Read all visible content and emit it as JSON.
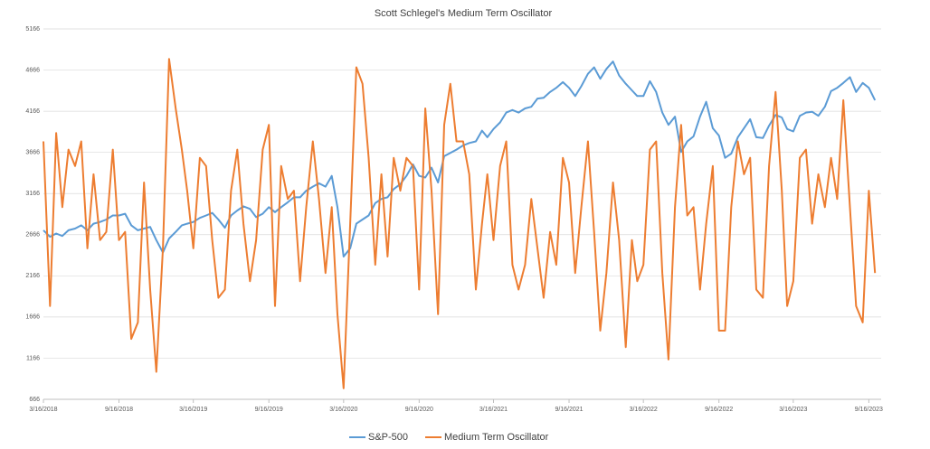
{
  "chart_data": {
    "type": "line",
    "title": "Scott Schlegel's Medium Term Oscillator",
    "x": [
      "2018-03-16",
      "2018-04-01",
      "2018-04-16",
      "2018-05-01",
      "2018-05-16",
      "2018-06-01",
      "2018-06-16",
      "2018-07-01",
      "2018-07-16",
      "2018-08-01",
      "2018-08-16",
      "2018-09-01",
      "2018-09-16",
      "2018-10-01",
      "2018-10-16",
      "2018-11-01",
      "2018-11-16",
      "2018-12-01",
      "2018-12-16",
      "2019-01-01",
      "2019-01-16",
      "2019-02-01",
      "2019-02-16",
      "2019-03-01",
      "2019-03-16",
      "2019-04-01",
      "2019-04-16",
      "2019-05-01",
      "2019-05-16",
      "2019-06-01",
      "2019-06-16",
      "2019-07-01",
      "2019-07-16",
      "2019-08-01",
      "2019-08-16",
      "2019-09-01",
      "2019-09-16",
      "2019-10-01",
      "2019-10-16",
      "2019-11-01",
      "2019-11-16",
      "2019-12-01",
      "2019-12-16",
      "2020-01-01",
      "2020-01-16",
      "2020-02-01",
      "2020-02-16",
      "2020-03-01",
      "2020-03-16",
      "2020-04-01",
      "2020-04-16",
      "2020-05-01",
      "2020-05-16",
      "2020-06-01",
      "2020-06-16",
      "2020-07-01",
      "2020-07-16",
      "2020-08-01",
      "2020-08-16",
      "2020-09-01",
      "2020-09-16",
      "2020-10-01",
      "2020-10-16",
      "2020-11-01",
      "2020-11-16",
      "2020-12-01",
      "2020-12-16",
      "2021-01-01",
      "2021-01-16",
      "2021-02-01",
      "2021-02-16",
      "2021-03-01",
      "2021-03-16",
      "2021-04-01",
      "2021-04-16",
      "2021-05-01",
      "2021-05-16",
      "2021-06-01",
      "2021-06-16",
      "2021-07-01",
      "2021-07-16",
      "2021-08-01",
      "2021-08-16",
      "2021-09-01",
      "2021-09-16",
      "2021-10-01",
      "2021-10-16",
      "2021-11-01",
      "2021-11-16",
      "2021-12-01",
      "2021-12-16",
      "2022-01-01",
      "2022-01-16",
      "2022-02-01",
      "2022-02-16",
      "2022-03-01",
      "2022-03-16",
      "2022-04-01",
      "2022-04-16",
      "2022-05-01",
      "2022-05-16",
      "2022-06-01",
      "2022-06-16",
      "2022-07-01",
      "2022-07-16",
      "2022-08-01",
      "2022-08-16",
      "2022-09-01",
      "2022-09-16",
      "2022-10-01",
      "2022-10-16",
      "2022-11-01",
      "2022-11-16",
      "2022-12-01",
      "2022-12-16",
      "2023-01-01",
      "2023-01-16",
      "2023-02-01",
      "2023-02-16",
      "2023-03-01",
      "2023-03-16",
      "2023-04-01",
      "2023-04-16",
      "2023-05-01",
      "2023-05-16",
      "2023-06-01",
      "2023-06-16",
      "2023-07-01",
      "2023-07-16",
      "2023-08-01",
      "2023-08-16",
      "2023-09-01",
      "2023-09-16",
      "2023-10-01"
    ],
    "series": [
      {
        "name": "S&P-500",
        "color": "#5b9bd5",
        "values": [
          2720,
          2640,
          2680,
          2650,
          2720,
          2740,
          2780,
          2720,
          2800,
          2820,
          2850,
          2900,
          2900,
          2920,
          2780,
          2720,
          2740,
          2760,
          2600,
          2450,
          2620,
          2700,
          2780,
          2800,
          2820,
          2870,
          2900,
          2930,
          2850,
          2750,
          2900,
          2960,
          3010,
          2980,
          2880,
          2920,
          3000,
          2940,
          3000,
          3060,
          3120,
          3120,
          3200,
          3250,
          3290,
          3250,
          3380,
          3000,
          2400,
          2500,
          2800,
          2850,
          2900,
          3050,
          3100,
          3120,
          3220,
          3280,
          3380,
          3520,
          3380,
          3360,
          3480,
          3300,
          3620,
          3660,
          3700,
          3750,
          3780,
          3800,
          3930,
          3850,
          3950,
          4030,
          4150,
          4180,
          4150,
          4200,
          4220,
          4320,
          4330,
          4400,
          4450,
          4520,
          4450,
          4350,
          4470,
          4620,
          4700,
          4560,
          4680,
          4770,
          4600,
          4500,
          4420,
          4350,
          4350,
          4530,
          4400,
          4150,
          4000,
          4100,
          3670,
          3800,
          3860,
          4100,
          4280,
          3960,
          3870,
          3600,
          3650,
          3850,
          3960,
          4070,
          3850,
          3840,
          3990,
          4120,
          4090,
          3950,
          3920,
          4110,
          4150,
          4160,
          4110,
          4220,
          4410,
          4450,
          4510,
          4580,
          4400,
          4510,
          4450,
          4300
        ]
      },
      {
        "name": "Medium Term Oscillator",
        "color": "#ed7d31",
        "values": [
          3800,
          1800,
          3900,
          3000,
          3700,
          3500,
          3800,
          2500,
          3400,
          2600,
          2700,
          3700,
          2600,
          2700,
          1400,
          1600,
          3300,
          2000,
          1000,
          2500,
          4800,
          4200,
          3700,
          3200,
          2500,
          3600,
          3500,
          2600,
          1900,
          2000,
          3200,
          3700,
          2800,
          2100,
          2600,
          3700,
          4000,
          1800,
          3500,
          3100,
          3200,
          2100,
          3000,
          3800,
          3100,
          2200,
          3000,
          1700,
          800,
          2800,
          4700,
          4500,
          3600,
          2300,
          3400,
          2400,
          3600,
          3200,
          3600,
          3500,
          2000,
          4200,
          3200,
          1700,
          4000,
          4500,
          3800,
          3800,
          3400,
          2000,
          2800,
          3400,
          2600,
          3500,
          3800,
          2300,
          2000,
          2300,
          3100,
          2500,
          1900,
          2700,
          2300,
          3600,
          3300,
          2200,
          3000,
          3800,
          2700,
          1500,
          2200,
          3300,
          2600,
          1300,
          2600,
          2100,
          2300,
          3700,
          3800,
          2200,
          1150,
          3000,
          4000,
          2900,
          3000,
          2000,
          2800,
          3500,
          1500,
          1500,
          3000,
          3800,
          3400,
          3600,
          2000,
          1900,
          3500,
          4400,
          3200,
          1800,
          2100,
          3600,
          3700,
          2800,
          3400,
          3000,
          3600,
          3100,
          4300,
          3000,
          1800,
          1600,
          3200,
          2200
        ]
      }
    ],
    "xlim": [
      "2018-03-16",
      "2023-10-16"
    ],
    "xticks": [
      {
        "value": "2018-03-16",
        "label": "3/16/2018"
      },
      {
        "value": "2018-09-16",
        "label": "9/16/2018"
      },
      {
        "value": "2019-03-16",
        "label": "3/16/2019"
      },
      {
        "value": "2019-09-16",
        "label": "9/16/2019"
      },
      {
        "value": "2020-03-16",
        "label": "3/16/2020"
      },
      {
        "value": "2020-09-16",
        "label": "9/16/2020"
      },
      {
        "value": "2021-03-16",
        "label": "3/16/2021"
      },
      {
        "value": "2021-09-16",
        "label": "9/16/2021"
      },
      {
        "value": "2022-03-16",
        "label": "3/16/2022"
      },
      {
        "value": "2022-09-16",
        "label": "9/16/2022"
      },
      {
        "value": "2023-03-16",
        "label": "3/16/2023"
      },
      {
        "value": "2023-09-16",
        "label": "9/16/2023"
      }
    ],
    "ylim": [
      666,
      5166
    ],
    "yticks": [
      666,
      1166,
      1666,
      2166,
      2666,
      3166,
      3666,
      4166,
      4666,
      5166
    ],
    "grid": true,
    "legend": "bottom"
  }
}
